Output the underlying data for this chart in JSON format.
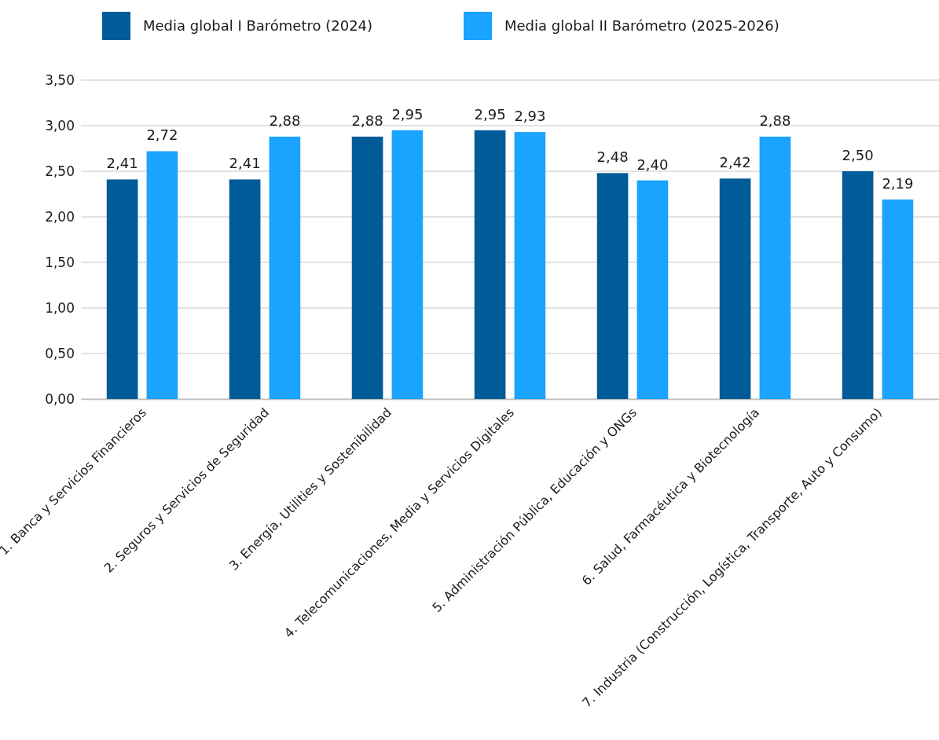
{
  "chart_data": {
    "type": "bar",
    "categories": [
      "1. Banca y Servicios Financieros",
      "2. Seguros y Servicios de Seguridad",
      "3. Energía, Utilities y Sostenibilidad",
      "4. Telecomunicaciones, Media y Servicios Digitales",
      "5. Administración Pública, Educación y ONGs",
      "6. Salud, Farmacéutica y Biotecnología",
      "7. Industria (Construcción, Logística, Transporte, Auto y Consumo)"
    ],
    "series": [
      {
        "name": "Media global I Barómetro (2024)",
        "color": "#005b99",
        "values": [
          2.41,
          2.41,
          2.88,
          2.95,
          2.48,
          2.42,
          2.5
        ],
        "value_labels": [
          "2,41",
          "2,41",
          "2,88",
          "2,95",
          "2,48",
          "2,42",
          "2,50"
        ]
      },
      {
        "name": "Media global II Barómetro (2025-2026)",
        "color": "#1aa3ff",
        "values": [
          2.72,
          2.88,
          2.95,
          2.93,
          2.4,
          2.88,
          2.19
        ],
        "value_labels": [
          "2,72",
          "2,88",
          "2,95",
          "2,93",
          "2,40",
          "2,88",
          "2,19"
        ]
      }
    ],
    "ylim": [
      0,
      3.5
    ],
    "yticks": [
      {
        "value": 0,
        "label": "0,00"
      },
      {
        "value": 0.5,
        "label": "0,50"
      },
      {
        "value": 1,
        "label": "1,00"
      },
      {
        "value": 1.5,
        "label": "1,50"
      },
      {
        "value": 2,
        "label": "2,00"
      },
      {
        "value": 2.5,
        "label": "2,50"
      },
      {
        "value": 3,
        "label": "3,00"
      },
      {
        "value": 3.5,
        "label": "3,50"
      }
    ],
    "grid": "y",
    "legend": "top"
  }
}
